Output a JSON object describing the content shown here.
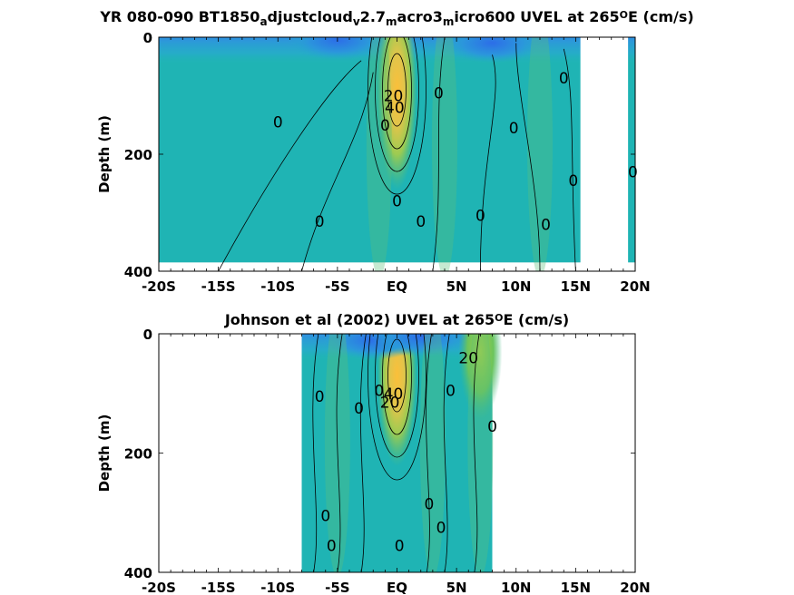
{
  "chart_data": [
    {
      "type": "heatmap",
      "title_parts": [
        {
          "t": "YR 080-090 BT1850"
        },
        {
          "t": "a",
          "sub": true
        },
        {
          "t": "djustcloud"
        },
        {
          "t": "v",
          "sub": true
        },
        {
          "t": "2.7"
        },
        {
          "t": "m",
          "sub": true
        },
        {
          "t": "acro3"
        },
        {
          "t": "m",
          "sub": true
        },
        {
          "t": "icro600 UVEL at 265"
        },
        {
          "t": "O",
          "sup": true
        },
        {
          "t": "E (cm/s)"
        }
      ],
      "ylabel": "Depth (m)",
      "xlim": [
        -20,
        20
      ],
      "ylim": [
        0,
        400
      ],
      "y_reversed": true,
      "xticks": [
        -20,
        -15,
        -10,
        -5,
        0,
        5,
        10,
        15,
        20
      ],
      "xticklabels": [
        "-20S",
        "-15S",
        "-10S",
        "-5S",
        "EQ",
        "5N",
        "10N",
        "15N",
        "20N"
      ],
      "yticks": [
        0,
        200,
        400
      ],
      "yticklabels": [
        "0",
        "200",
        "400"
      ],
      "data_extent_x": [
        -20,
        20
      ],
      "missing_regions": [
        {
          "x": [
            15.4,
            19.4
          ],
          "y": [
            0,
            400
          ]
        }
      ],
      "features": [
        {
          "kind": "jet_core",
          "x": 0,
          "y": 90,
          "value": 60
        },
        {
          "kind": "westward_surface",
          "x": -5,
          "y": 5,
          "value": -30
        },
        {
          "kind": "westward_surface",
          "x": 8,
          "y": 10,
          "value": -30
        }
      ],
      "contour_labels": [
        {
          "text": "0",
          "x": -10,
          "y": 145
        },
        {
          "text": "0",
          "x": -6.5,
          "y": 315
        },
        {
          "text": "0",
          "x": -1,
          "y": 150
        },
        {
          "text": "0",
          "x": 0,
          "y": 280
        },
        {
          "text": "0",
          "x": 2,
          "y": 315
        },
        {
          "text": "0",
          "x": 3.5,
          "y": 95
        },
        {
          "text": "0",
          "x": 7,
          "y": 305
        },
        {
          "text": "0",
          "x": 9.8,
          "y": 155
        },
        {
          "text": "0",
          "x": 12.5,
          "y": 320
        },
        {
          "text": "0",
          "x": 14,
          "y": 70
        },
        {
          "text": "0",
          "x": 14.8,
          "y": 245
        },
        {
          "text": "0",
          "x": 19.8,
          "y": 230
        },
        {
          "text": "20",
          "x": -0.3,
          "y": 100
        },
        {
          "text": "40",
          "x": -0.2,
          "y": 120
        }
      ]
    },
    {
      "type": "heatmap",
      "title_parts": [
        {
          "t": "Johnson et al (2002) UVEL at 265"
        },
        {
          "t": "O",
          "sup": true
        },
        {
          "t": "E (cm/s)"
        }
      ],
      "ylabel": "Depth (m)",
      "xlim": [
        -20,
        20
      ],
      "ylim": [
        0,
        400
      ],
      "y_reversed": true,
      "xticks": [
        -20,
        -15,
        -10,
        -5,
        0,
        5,
        10,
        15,
        20
      ],
      "xticklabels": [
        "-20S",
        "-15S",
        "-10S",
        "-5S",
        "EQ",
        "5N",
        "10N",
        "15N",
        "20N"
      ],
      "yticks": [
        0,
        200,
        400
      ],
      "yticklabels": [
        "0",
        "200",
        "400"
      ],
      "data_extent_x": [
        -8,
        8
      ],
      "missing_regions": [],
      "features": [
        {
          "kind": "jet_core",
          "x": 0,
          "y": 70,
          "value": 70
        },
        {
          "kind": "westward_surface",
          "x": -2,
          "y": 10,
          "value": -40
        },
        {
          "kind": "westward_surface",
          "x": 2,
          "y": 5,
          "value": -40
        },
        {
          "kind": "eastward_surface",
          "x": 7,
          "y": 30,
          "value": 20
        }
      ],
      "contour_labels": [
        {
          "text": "0",
          "x": -6.5,
          "y": 105
        },
        {
          "text": "0",
          "x": -3.2,
          "y": 125
        },
        {
          "text": "0",
          "x": -1.5,
          "y": 95
        },
        {
          "text": "0",
          "x": -6,
          "y": 305
        },
        {
          "text": "0",
          "x": -5.5,
          "y": 355
        },
        {
          "text": "0",
          "x": 0.2,
          "y": 355
        },
        {
          "text": "0",
          "x": 2.7,
          "y": 285
        },
        {
          "text": "0",
          "x": 3.7,
          "y": 325
        },
        {
          "text": "0",
          "x": 4.5,
          "y": 95
        },
        {
          "text": "0",
          "x": 8,
          "y": 155
        },
        {
          "text": "20",
          "x": 6,
          "y": 40
        },
        {
          "text": "40",
          "x": -0.3,
          "y": 100
        },
        {
          "text": "20",
          "x": -0.6,
          "y": 115
        }
      ]
    }
  ]
}
